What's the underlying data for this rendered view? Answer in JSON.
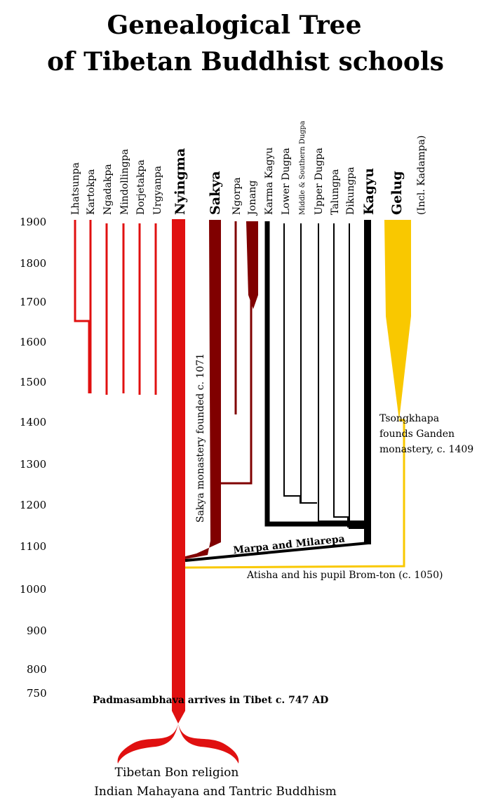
{
  "title": {
    "line1": "Genealogical Tree",
    "line2": "of Tibetan Buddhist schools"
  },
  "years": [
    "1900",
    "1800",
    "1700",
    "1600",
    "1500",
    "1400",
    "1300",
    "1200",
    "1100",
    "1000",
    "900",
    "800",
    "750"
  ],
  "schools": {
    "lhatsunpa": "Lhatsunpa",
    "kartokpa": "Kartokpa",
    "ngadakpa": "Ngadakpa",
    "mindollingpa": "Mindollingpa",
    "dorjetakpa": "Dorjetakpa",
    "urgyanpa": "Urgyanpa",
    "nyingma": "Nyingma",
    "sakya": "Sakya",
    "ngorpa": "Ngorpa",
    "jonang": "Jonang",
    "karma_kagyu": "Karma Kagyu",
    "lower_dugpa": "Lower Dugpa",
    "middle_southern_dugpa": "Middle & Southern Dugpa",
    "upper_dugpa": "Upper Dugpa",
    "talungpa": "Talungpa",
    "dikungpa": "Dikungpa",
    "kagyu": "Kagyu",
    "gelug": "Gelug",
    "gelug_sub": "(Incl. Kadampa)"
  },
  "notes": {
    "sakya_monastery": "Sakya monastery founded c. 1071",
    "marpa": "Marpa and Milarepa",
    "atisha": "Atisha and his pupil Brom-ton (c. 1050)",
    "tsongkhapa1": "Tsongkhapa",
    "tsongkhapa2": "founds Ganden",
    "tsongkhapa3": "monastery, c. 1409",
    "padmasambhava": "Padmasambhava arrives in Tibet c. 747 AD"
  },
  "origins": {
    "line1": "Tibetan Bon religion",
    "line2": "Indian Mahayana and Tantric Buddhism"
  },
  "colors": {
    "nyingma": "#e01010",
    "sakya": "#800000",
    "kagyu": "#000000",
    "gelug": "#f9c800"
  }
}
